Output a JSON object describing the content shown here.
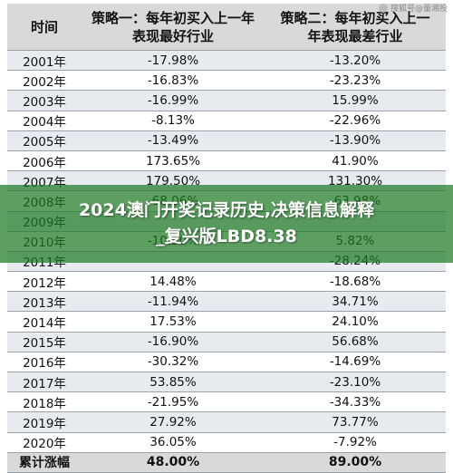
{
  "table": {
    "headers": {
      "col1": "时间",
      "col2_line1": "策略一：每年初买入上一年",
      "col2_line2": "表现最好行业",
      "col3_line1": "策略二：每年初买入上一",
      "col3_line2": "年表现最差行业"
    },
    "rows": [
      {
        "year": "2001年",
        "s1": "-17.98%",
        "s2": "-13.20%"
      },
      {
        "year": "2002年",
        "s1": "-16.83%",
        "s2": "-23.23%"
      },
      {
        "year": "2003年",
        "s1": "-16.99%",
        "s2": "15.99%"
      },
      {
        "year": "2004年",
        "s1": "-8.13%",
        "s2": "-22.96%"
      },
      {
        "year": "2005年",
        "s1": "-13.49%",
        "s2": "-13.90%"
      },
      {
        "year": "2006年",
        "s1": "173.65%",
        "s2": "41.90%"
      },
      {
        "year": "2007年",
        "s1": "179.50%",
        "s2": "131.30%"
      },
      {
        "year": "2008年",
        "s1": "-68.06%",
        "s2": "-63.98%"
      },
      {
        "year": "2009年",
        "s1": "",
        "s2": ""
      },
      {
        "year": "2010年",
        "s1": "-10.50%",
        "s2": "5.82%"
      },
      {
        "year": "2011年",
        "s1": "",
        "s2": "-28.24%"
      },
      {
        "year": "2012年",
        "s1": "14.48%",
        "s2": "-18.68%"
      },
      {
        "year": "2013年",
        "s1": "-11.94%",
        "s2": "34.71%"
      },
      {
        "year": "2014年",
        "s1": "17.53%",
        "s2": "24.10%"
      },
      {
        "year": "2015年",
        "s1": "-16.90%",
        "s2": "56.68%"
      },
      {
        "year": "2016年",
        "s1": "-30.32%",
        "s2": "-14.69%"
      },
      {
        "year": "2017年",
        "s1": "53.85%",
        "s2": "-23.10%"
      },
      {
        "year": "2018年",
        "s1": "-21.95%",
        "s2": "-34.33%"
      },
      {
        "year": "2019年",
        "s1": "27.92%",
        "s2": "73.77%"
      },
      {
        "year": "2020年",
        "s1": "36.05%",
        "s2": "-7.92%"
      }
    ],
    "total": {
      "label": "累计涨幅",
      "s1": "48.00%",
      "s2": "89.00%"
    }
  },
  "banner": {
    "line1": "2024澳门开奖记录历史,决策信息解释",
    "line2": "_复兴版LBD8.38"
  },
  "watermark": {
    "text": "搜狐号@量湘投"
  }
}
